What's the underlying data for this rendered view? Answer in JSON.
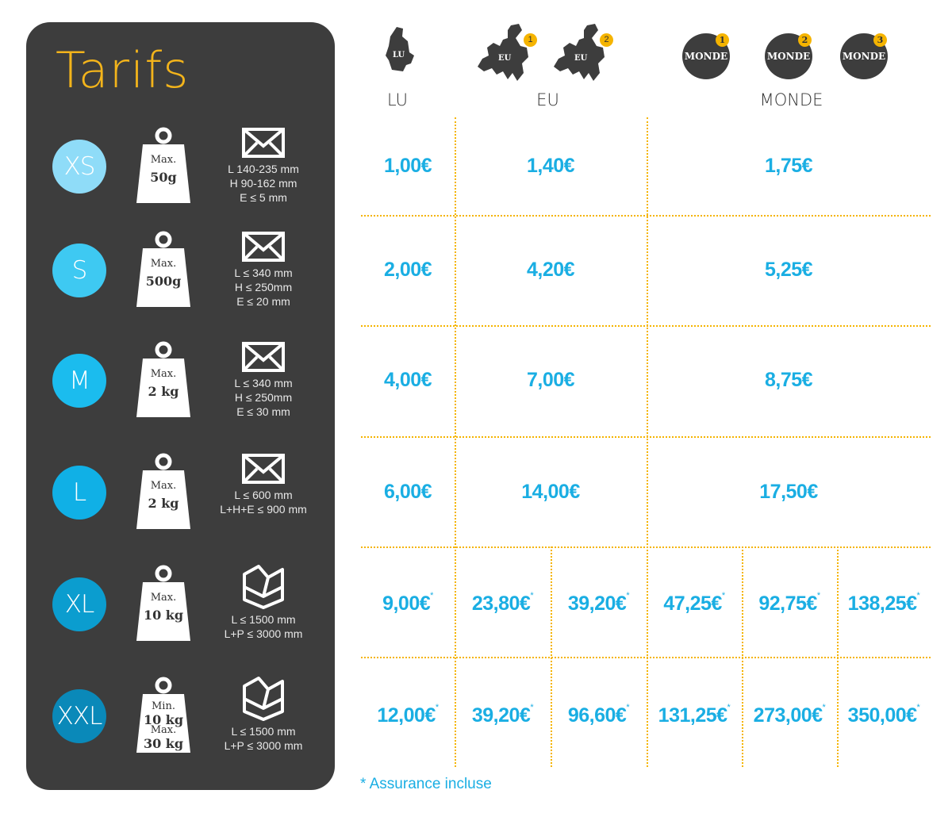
{
  "title": "Tarifs",
  "colors": {
    "accent": "#f3b41b",
    "price": "#1aaee3",
    "panel": "#3d3d3d",
    "grid": "#f5b400"
  },
  "destinations": {
    "lu": {
      "icon_label": "LU",
      "header": "LU"
    },
    "eu": {
      "header": "EU",
      "zones": [
        {
          "icon_label": "EU",
          "badge": "1"
        },
        {
          "icon_label": "EU",
          "badge": "2"
        }
      ]
    },
    "monde": {
      "header": "MONDE",
      "zones": [
        {
          "icon_label": "MONDE",
          "badge": "1"
        },
        {
          "icon_label": "MONDE",
          "badge": "2"
        },
        {
          "icon_label": "MONDE",
          "badge": "3"
        }
      ]
    }
  },
  "rows": [
    {
      "size": "XS",
      "color": "#8fdcf8",
      "package": "envelope-icon",
      "weight": [
        "Max.",
        "50g"
      ],
      "dims": [
        "L 140-235 mm",
        "H 90-162 mm",
        "E ≤ 5 mm"
      ],
      "lu": "1,00€",
      "eu": [
        "1,40€"
      ],
      "monde": [
        "1,75€"
      ],
      "marker": ""
    },
    {
      "size": "S",
      "color": "#3ec9f2",
      "package": "envelope-icon",
      "weight": [
        "Max.",
        "500g"
      ],
      "dims": [
        "L ≤ 340 mm",
        "H ≤ 250mm",
        "E ≤ 20 mm"
      ],
      "lu": "2,00€",
      "eu": [
        "4,20€"
      ],
      "monde": [
        "5,25€"
      ],
      "marker": ""
    },
    {
      "size": "M",
      "color": "#1bbcee",
      "package": "envelope-icon",
      "weight": [
        "Max.",
        "2 kg"
      ],
      "dims": [
        "L ≤ 340 mm",
        "H ≤ 250mm",
        "E ≤ 30 mm"
      ],
      "lu": "4,00€",
      "eu": [
        "7,00€"
      ],
      "monde": [
        "8,75€"
      ],
      "marker": ""
    },
    {
      "size": "L",
      "color": "#10b0e6",
      "package": "envelope-icon",
      "weight": [
        "Max.",
        "2 kg"
      ],
      "dims": [
        "L ≤ 600 mm",
        "L+H+E ≤ 900 mm"
      ],
      "lu": "6,00€",
      "eu": [
        "14,00€"
      ],
      "monde": [
        "17,50€"
      ],
      "marker": ""
    },
    {
      "size": "XL",
      "color": "#0b9dcf",
      "package": "box-icon",
      "weight": [
        "Max.",
        "10 kg"
      ],
      "dims": [
        "L ≤ 1500 mm",
        "L+P ≤ 3000 mm"
      ],
      "lu": "9,00€",
      "eu": [
        "23,80€",
        "39,20€"
      ],
      "monde": [
        "47,25€",
        "92,75€",
        "138,25€"
      ],
      "marker": "*"
    },
    {
      "size": "XXL",
      "color": "#0a89b9",
      "package": "box-icon",
      "weight": [
        "Min.",
        "10 kg",
        "Max.",
        "30 kg"
      ],
      "dims": [
        "L ≤ 1500 mm",
        "L+P ≤ 3000 mm"
      ],
      "lu": "12,00€",
      "eu": [
        "39,20€",
        "96,60€"
      ],
      "monde": [
        "131,25€",
        "273,00€",
        "350,00€"
      ],
      "marker": "*"
    }
  ],
  "footnote": "* Assurance incluse"
}
